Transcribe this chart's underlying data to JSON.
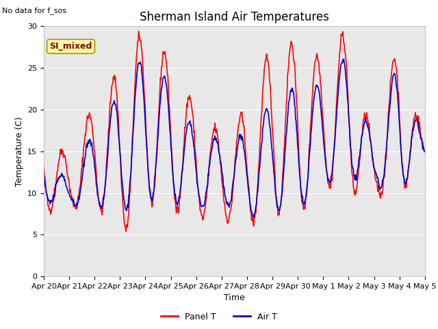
{
  "title": "Sherman Island Air Temperatures",
  "subtitle": "No data for f_sos",
  "xlabel": "Time",
  "ylabel": "Temperature (C)",
  "ylim": [
    0,
    30
  ],
  "yticks": [
    0,
    5,
    10,
    15,
    20,
    25,
    30
  ],
  "legend_label_red": "Panel T",
  "legend_label_blue": "Air T",
  "annotation": "SI_mixed",
  "plot_bg_color": "#e8e8e8",
  "fig_bg_color": "#ffffff",
  "red_color": "#ff0000",
  "blue_color": "#0000cc",
  "line_width": 1.2,
  "title_fontsize": 12,
  "axis_label_fontsize": 9,
  "tick_fontsize": 8,
  "legend_fontsize": 9,
  "x_tick_labels": [
    "Apr 20",
    "Apr 21",
    "Apr 22",
    "Apr 23",
    "Apr 24",
    "Apr 25",
    "Apr 26",
    "Apr 27",
    "Apr 28",
    "Apr 29",
    "Apr 30",
    "May 1",
    "May 2",
    "May 3",
    "May 4",
    "May 5"
  ]
}
